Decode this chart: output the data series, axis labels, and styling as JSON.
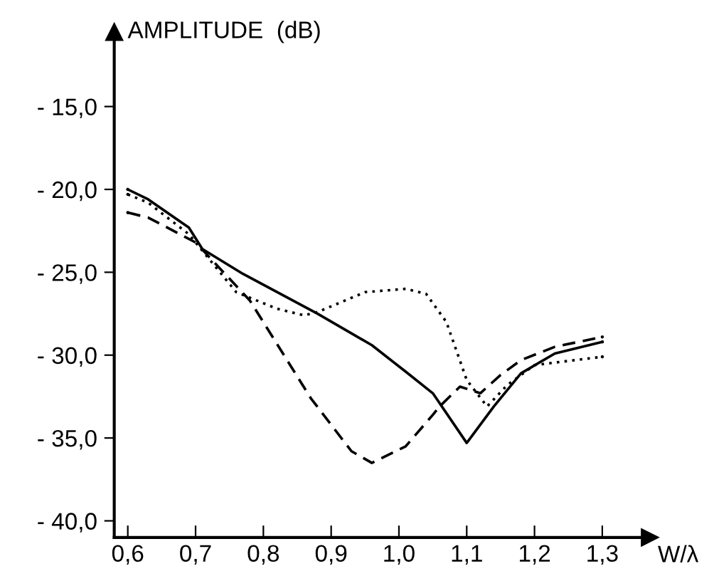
{
  "chart_data": {
    "type": "line",
    "xlabel": "W/λ",
    "ylabel": "AMPLITUDE  (dB)",
    "xlim": [
      0.58,
      1.37
    ],
    "ylim": [
      -41,
      -10.5
    ],
    "xticks": [
      {
        "value": 0.6,
        "label": "0,6"
      },
      {
        "value": 0.7,
        "label": "0,7"
      },
      {
        "value": 0.8,
        "label": "0,8"
      },
      {
        "value": 0.9,
        "label": "0,9"
      },
      {
        "value": 1.0,
        "label": "1,0"
      },
      {
        "value": 1.1,
        "label": "1,1"
      },
      {
        "value": 1.2,
        "label": "1,2"
      },
      {
        "value": 1.3,
        "label": "1,3"
      }
    ],
    "yticks": [
      {
        "value": -15,
        "label": "- 15,0"
      },
      {
        "value": -20,
        "label": "- 20,0"
      },
      {
        "value": -25,
        "label": "- 25,0"
      },
      {
        "value": -30,
        "label": "- 30,0"
      },
      {
        "value": -35,
        "label": "- 35,0"
      },
      {
        "value": -40,
        "label": "- 40,0"
      }
    ],
    "grid": false,
    "legend": false,
    "series": [
      {
        "color": "#000000",
        "line_style": "solid",
        "x": [
          0.6,
          0.63,
          0.69,
          0.71,
          0.77,
          0.88,
          0.96,
          1.01,
          1.05,
          1.1,
          1.14,
          1.18,
          1.23,
          1.3
        ],
        "values": [
          -20.0,
          -20.6,
          -22.3,
          -23.6,
          -25.1,
          -27.5,
          -29.4,
          -31.0,
          -32.3,
          -35.3,
          -33.1,
          -31.1,
          -29.9,
          -29.2
        ]
      },
      {
        "color": "#000000",
        "line_style": "dashed",
        "x": [
          0.6,
          0.63,
          0.7,
          0.78,
          0.87,
          0.93,
          0.96,
          1.01,
          1.05,
          1.06,
          1.09,
          1.12,
          1.15,
          1.18,
          1.23,
          1.3
        ],
        "values": [
          -21.4,
          -21.7,
          -23.2,
          -26.7,
          -32.6,
          -35.8,
          -36.5,
          -35.5,
          -33.6,
          -33.1,
          -31.9,
          -32.3,
          -31.2,
          -30.3,
          -29.5,
          -28.9
        ]
      },
      {
        "color": "#000000",
        "line_style": "dotted",
        "x": [
          0.6,
          0.63,
          0.69,
          0.76,
          0.82,
          0.86,
          0.88,
          0.95,
          1.01,
          1.04,
          1.07,
          1.1,
          1.13,
          1.16,
          1.2,
          1.3
        ],
        "values": [
          -20.3,
          -20.8,
          -22.7,
          -26.2,
          -27.2,
          -27.6,
          -27.4,
          -26.2,
          -26.0,
          -26.3,
          -28.0,
          -31.5,
          -33.1,
          -31.8,
          -30.6,
          -30.1
        ]
      }
    ]
  }
}
